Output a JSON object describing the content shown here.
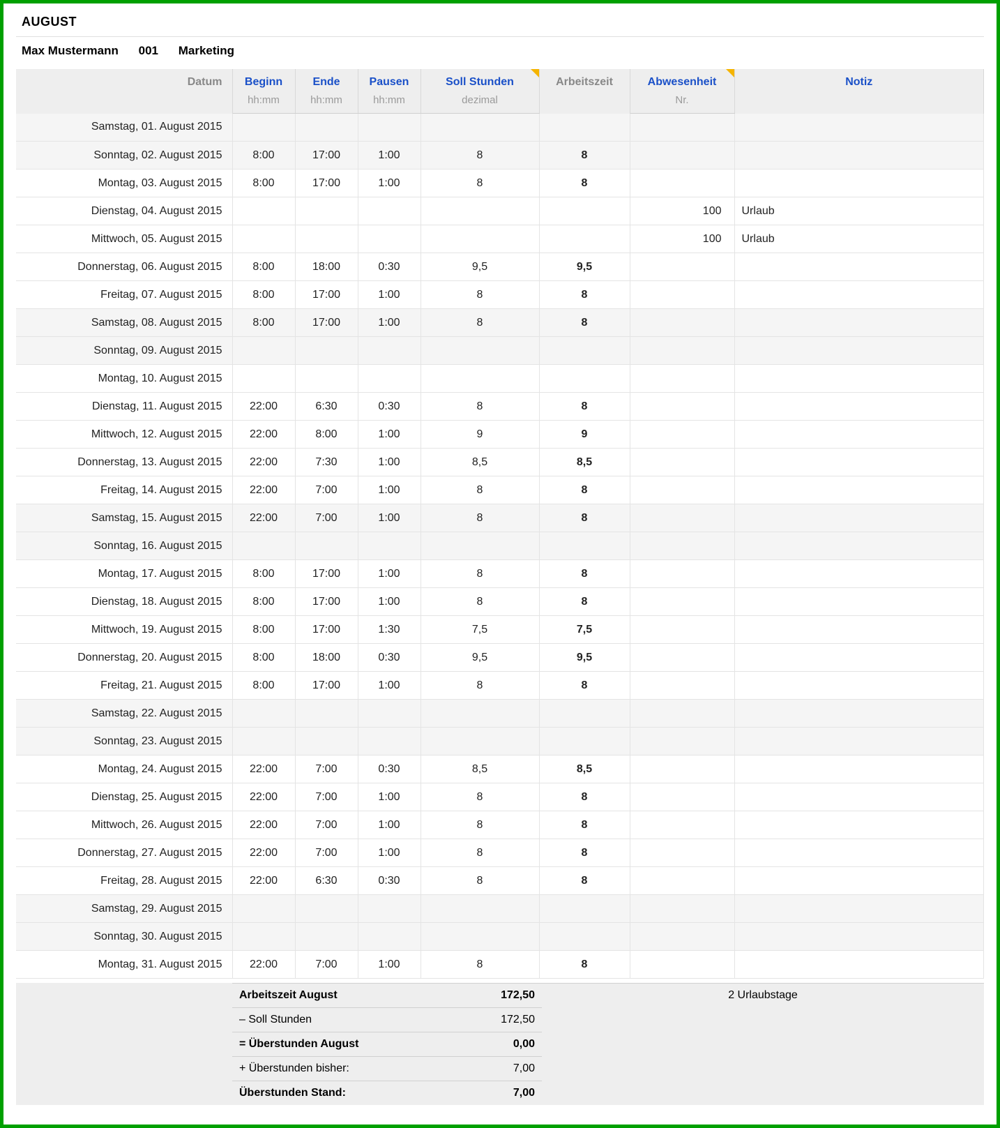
{
  "title": "AUGUST",
  "employee": {
    "name": "Max Mustermann",
    "id": "001",
    "dept": "Marketing"
  },
  "headers": {
    "datum": "Datum",
    "beginn": "Beginn",
    "ende": "Ende",
    "pausen": "Pausen",
    "soll": "Soll Stunden",
    "arbeitszeit": "Arbeitszeit",
    "abwesenheit": "Abwesenheit",
    "notiz": "Notiz"
  },
  "subheaders": {
    "beginn": "hh:mm",
    "ende": "hh:mm",
    "pausen": "hh:mm",
    "soll": "dezimal",
    "abwesenheit": "Nr."
  },
  "summary": {
    "arbeitszeit_label": "Arbeitszeit August",
    "arbeitszeit_value": "172,50",
    "soll_label": "– Soll Stunden",
    "soll_value": "172,50",
    "ueberstunden_month_label": "= Überstunden August",
    "ueberstunden_month_value": "0,00",
    "ueberstunden_bisher_label": "+ Überstunden bisher:",
    "ueberstunden_bisher_value": "7,00",
    "ueberstunden_stand_label": "Überstunden Stand:",
    "ueberstunden_stand_value": "7,00",
    "urlaub_label": "2 Urlaubstage"
  },
  "rows": [
    {
      "date": "Samstag, 01. August 2015",
      "weekend": true
    },
    {
      "date": "Sonntag, 02. August 2015",
      "weekend": true,
      "beginn": "8:00",
      "ende": "17:00",
      "pausen": "1:00",
      "soll": "8",
      "arbeitszeit": "8"
    },
    {
      "date": "Montag, 03. August 2015",
      "beginn": "8:00",
      "ende": "17:00",
      "pausen": "1:00",
      "soll": "8",
      "arbeitszeit": "8"
    },
    {
      "date": "Dienstag, 04. August 2015",
      "abw": "100",
      "notiz": "Urlaub"
    },
    {
      "date": "Mittwoch, 05. August 2015",
      "abw": "100",
      "notiz": "Urlaub"
    },
    {
      "date": "Donnerstag, 06. August 2015",
      "beginn": "8:00",
      "ende": "18:00",
      "pausen": "0:30",
      "soll": "9,5",
      "arbeitszeit": "9,5"
    },
    {
      "date": "Freitag, 07. August 2015",
      "beginn": "8:00",
      "ende": "17:00",
      "pausen": "1:00",
      "soll": "8",
      "arbeitszeit": "8"
    },
    {
      "date": "Samstag, 08. August 2015",
      "weekend": true,
      "beginn": "8:00",
      "ende": "17:00",
      "pausen": "1:00",
      "soll": "8",
      "arbeitszeit": "8"
    },
    {
      "date": "Sonntag, 09. August 2015",
      "weekend": true
    },
    {
      "date": "Montag, 10. August 2015"
    },
    {
      "date": "Dienstag, 11. August 2015",
      "beginn": "22:00",
      "ende": "6:30",
      "pausen": "0:30",
      "soll": "8",
      "arbeitszeit": "8"
    },
    {
      "date": "Mittwoch, 12. August 2015",
      "beginn": "22:00",
      "ende": "8:00",
      "pausen": "1:00",
      "soll": "9",
      "arbeitszeit": "9"
    },
    {
      "date": "Donnerstag, 13. August 2015",
      "beginn": "22:00",
      "ende": "7:30",
      "pausen": "1:00",
      "soll": "8,5",
      "arbeitszeit": "8,5"
    },
    {
      "date": "Freitag, 14. August 2015",
      "beginn": "22:00",
      "ende": "7:00",
      "pausen": "1:00",
      "soll": "8",
      "arbeitszeit": "8"
    },
    {
      "date": "Samstag, 15. August 2015",
      "weekend": true,
      "beginn": "22:00",
      "ende": "7:00",
      "pausen": "1:00",
      "soll": "8",
      "arbeitszeit": "8"
    },
    {
      "date": "Sonntag, 16. August 2015",
      "weekend": true
    },
    {
      "date": "Montag, 17. August 2015",
      "beginn": "8:00",
      "ende": "17:00",
      "pausen": "1:00",
      "soll": "8",
      "arbeitszeit": "8"
    },
    {
      "date": "Dienstag, 18. August 2015",
      "beginn": "8:00",
      "ende": "17:00",
      "pausen": "1:00",
      "soll": "8",
      "arbeitszeit": "8"
    },
    {
      "date": "Mittwoch, 19. August 2015",
      "beginn": "8:00",
      "ende": "17:00",
      "pausen": "1:30",
      "soll": "7,5",
      "arbeitszeit": "7,5"
    },
    {
      "date": "Donnerstag, 20. August 2015",
      "beginn": "8:00",
      "ende": "18:00",
      "pausen": "0:30",
      "soll": "9,5",
      "arbeitszeit": "9,5"
    },
    {
      "date": "Freitag, 21. August 2015",
      "beginn": "8:00",
      "ende": "17:00",
      "pausen": "1:00",
      "soll": "8",
      "arbeitszeit": "8"
    },
    {
      "date": "Samstag, 22. August 2015",
      "weekend": true
    },
    {
      "date": "Sonntag, 23. August 2015",
      "weekend": true
    },
    {
      "date": "Montag, 24. August 2015",
      "beginn": "22:00",
      "ende": "7:00",
      "pausen": "0:30",
      "soll": "8,5",
      "arbeitszeit": "8,5"
    },
    {
      "date": "Dienstag, 25. August 2015",
      "beginn": "22:00",
      "ende": "7:00",
      "pausen": "1:00",
      "soll": "8",
      "arbeitszeit": "8"
    },
    {
      "date": "Mittwoch, 26. August 2015",
      "beginn": "22:00",
      "ende": "7:00",
      "pausen": "1:00",
      "soll": "8",
      "arbeitszeit": "8"
    },
    {
      "date": "Donnerstag, 27. August 2015",
      "beginn": "22:00",
      "ende": "7:00",
      "pausen": "1:00",
      "soll": "8",
      "arbeitszeit": "8"
    },
    {
      "date": "Freitag, 28. August 2015",
      "beginn": "22:00",
      "ende": "6:30",
      "pausen": "0:30",
      "soll": "8",
      "arbeitszeit": "8"
    },
    {
      "date": "Samstag, 29. August 2015",
      "weekend": true
    },
    {
      "date": "Sonntag, 30. August 2015",
      "weekend": true
    },
    {
      "date": "Montag, 31. August 2015",
      "beginn": "22:00",
      "ende": "7:00",
      "pausen": "1:00",
      "soll": "8",
      "arbeitszeit": "8"
    }
  ]
}
